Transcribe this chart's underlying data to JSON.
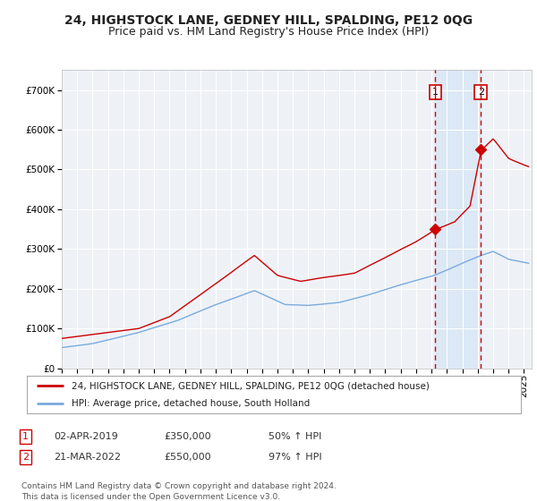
{
  "title": "24, HIGHSTOCK LANE, GEDNEY HILL, SPALDING, PE12 0QG",
  "subtitle": "Price paid vs. HM Land Registry's House Price Index (HPI)",
  "red_label": "24, HIGHSTOCK LANE, GEDNEY HILL, SPALDING, PE12 0QG (detached house)",
  "blue_label": "HPI: Average price, detached house, South Holland",
  "footnote": "Contains HM Land Registry data © Crown copyright and database right 2024.\nThis data is licensed under the Open Government Licence v3.0.",
  "annotation1": {
    "num": "1",
    "date": "02-APR-2019",
    "price": "£350,000",
    "pct": "50% ↑ HPI"
  },
  "annotation2": {
    "num": "2",
    "date": "21-MAR-2022",
    "price": "£550,000",
    "pct": "97% ↑ HPI"
  },
  "ylim": [
    0,
    750000
  ],
  "xlim_start": 1995.0,
  "xlim_end": 2025.5,
  "vline1_x": 2019.25,
  "vline2_x": 2022.21,
  "marker1_x": 2019.25,
  "marker1_y": 350000,
  "marker2_x": 2022.21,
  "marker2_y": 550000,
  "shade_start": 2019.25,
  "shade_end": 2022.21,
  "background_color": "#ffffff",
  "plot_bg_color": "#eef2f7",
  "shade_color": "#dce8f5",
  "grid_color": "#ffffff",
  "red_color": "#cc0000",
  "blue_color": "#7aaadd",
  "title_fontsize": 10,
  "subtitle_fontsize": 9,
  "tick_fontsize": 7.5,
  "red_t_pts": [
    1995.0,
    1997.0,
    2000.0,
    2002.0,
    2004.5,
    2007.5,
    2009.0,
    2010.5,
    2012.0,
    2014.0,
    2016.0,
    2018.0,
    2019.25,
    2020.5,
    2021.5,
    2022.21,
    2023.0,
    2024.0,
    2025.3
  ],
  "red_v_pts": [
    75000,
    85000,
    100000,
    130000,
    200000,
    285000,
    235000,
    220000,
    230000,
    240000,
    280000,
    320000,
    350000,
    370000,
    410000,
    550000,
    580000,
    530000,
    510000
  ],
  "blue_t_pts": [
    1995.0,
    1997.0,
    2000.0,
    2002.5,
    2005.0,
    2007.5,
    2009.5,
    2011.0,
    2013.0,
    2015.0,
    2017.0,
    2019.0,
    2019.25,
    2021.0,
    2022.21,
    2023.0,
    2024.0,
    2025.3
  ],
  "blue_v_pts": [
    52000,
    62000,
    90000,
    120000,
    160000,
    195000,
    160000,
    158000,
    165000,
    185000,
    210000,
    232000,
    235000,
    265000,
    285000,
    295000,
    275000,
    265000
  ]
}
